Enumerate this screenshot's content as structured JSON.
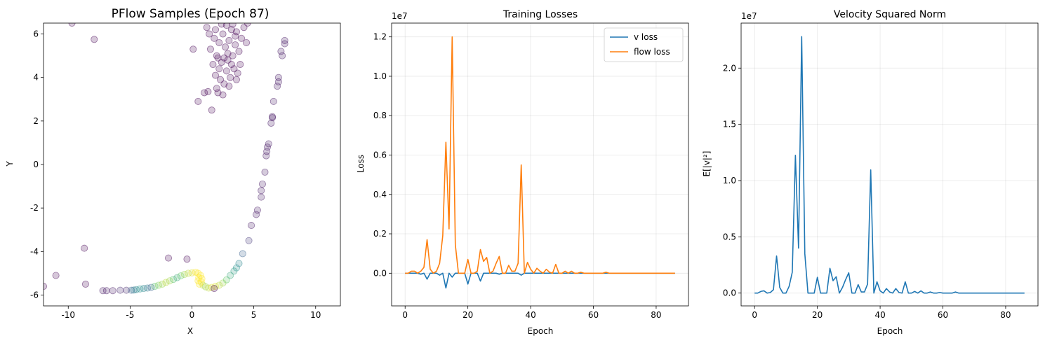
{
  "chart_data": [
    {
      "type": "scatter",
      "title": "PFlow Samples (Epoch 87)",
      "xlabel": "X",
      "ylabel": "Y",
      "xlim": [
        -12,
        12
      ],
      "ylim": [
        -6.5,
        6.5
      ],
      "xticks": [
        -10,
        -5,
        0,
        5,
        10
      ],
      "yticks": [
        -6,
        -4,
        -2,
        0,
        2,
        4,
        6
      ],
      "grid": false,
      "colormap": "viridis (point density)",
      "points": [
        [
          -12,
          -5.6,
          0
        ],
        [
          -11,
          -5.1,
          0
        ],
        [
          -9.7,
          6.5,
          0
        ],
        [
          -7.9,
          5.75,
          0
        ],
        [
          -8.7,
          -3.85,
          0
        ],
        [
          -8.6,
          -5.5,
          0
        ],
        [
          -7.2,
          -5.8,
          0.05
        ],
        [
          -6.9,
          -5.8,
          0.05
        ],
        [
          -6.4,
          -5.8,
          0.05
        ],
        [
          -5.8,
          -5.78,
          0.1
        ],
        [
          -5.3,
          -5.78,
          0.1
        ],
        [
          -4.9,
          -5.78,
          0.3
        ],
        [
          -4.7,
          -5.77,
          0.4
        ],
        [
          -4.5,
          -5.75,
          0.45
        ],
        [
          -4.2,
          -5.72,
          0.5
        ],
        [
          -3.9,
          -5.7,
          0.45
        ],
        [
          -3.6,
          -5.68,
          0.4
        ],
        [
          -3.3,
          -5.65,
          0.3
        ],
        [
          -3.0,
          -5.6,
          0.7
        ],
        [
          -2.7,
          -5.55,
          0.8
        ],
        [
          -2.4,
          -5.5,
          0.85
        ],
        [
          -2.1,
          -5.42,
          0.9
        ],
        [
          -1.8,
          -5.35,
          0.85
        ],
        [
          -1.5,
          -5.28,
          0.7
        ],
        [
          -1.2,
          -5.2,
          0.6
        ],
        [
          -0.9,
          -5.12,
          0.75
        ],
        [
          -0.6,
          -5.05,
          0.85
        ],
        [
          -0.3,
          -5.0,
          0.9
        ],
        [
          0,
          -4.98,
          0.95
        ],
        [
          0.3,
          -4.95,
          1
        ],
        [
          0.5,
          -5.0,
          1
        ],
        [
          0.7,
          -5.1,
          1
        ],
        [
          0.8,
          -5.25,
          1
        ],
        [
          0.75,
          -5.4,
          1
        ],
        [
          0.6,
          -5.5,
          1
        ],
        [
          0.5,
          -5.35,
          1
        ],
        [
          0.55,
          -5.2,
          1
        ],
        [
          0.9,
          -5.55,
          0.9
        ],
        [
          1.1,
          -5.62,
          0.85
        ],
        [
          1.35,
          -5.68,
          0.9
        ],
        [
          1.6,
          -5.65,
          0.95
        ],
        [
          1.9,
          -5.6,
          0.95
        ],
        [
          2.2,
          -5.55,
          0.9
        ],
        [
          2.5,
          -5.45,
          0.85
        ],
        [
          2.8,
          -5.3,
          0.75
        ],
        [
          3.1,
          -5.1,
          0.6
        ],
        [
          3.4,
          -4.9,
          0.55
        ],
        [
          3.6,
          -4.75,
          0.5
        ],
        [
          3.8,
          -4.55,
          0.45
        ],
        [
          4.1,
          -4.1,
          0.3
        ],
        [
          4.6,
          -3.5,
          0.15
        ],
        [
          4.8,
          -2.8,
          0.05
        ],
        [
          5.2,
          -2.3,
          0.05
        ],
        [
          5.3,
          -2.1,
          0.05
        ],
        [
          5.6,
          -1.5,
          0.05
        ],
        [
          5.6,
          -1.2,
          0.05
        ],
        [
          5.7,
          -0.9,
          0.05
        ],
        [
          5.9,
          -0.35,
          0.05
        ],
        [
          6.0,
          0.4,
          0.05
        ],
        [
          6.05,
          0.6,
          0.05
        ],
        [
          6.1,
          0.8,
          0.05
        ],
        [
          6.2,
          0.95,
          0.05
        ],
        [
          6.4,
          1.9,
          0.05
        ],
        [
          6.5,
          2.15,
          0.05
        ],
        [
          6.5,
          2.2,
          0.05
        ],
        [
          6.6,
          2.9,
          0.05
        ],
        [
          6.9,
          3.6,
          0.05
        ],
        [
          7.0,
          3.8,
          0.05
        ],
        [
          7.0,
          4.0,
          0.05
        ],
        [
          7.2,
          5.2,
          0.05
        ],
        [
          7.3,
          5.0,
          0.05
        ],
        [
          7.5,
          5.55,
          0.05
        ],
        [
          7.5,
          5.7,
          0.05
        ],
        [
          0.1,
          5.3,
          0
        ],
        [
          0.5,
          2.9,
          0
        ],
        [
          1.0,
          3.3,
          0
        ],
        [
          1.3,
          3.35,
          0
        ],
        [
          1.6,
          2.5,
          0
        ],
        [
          2.1,
          3.3,
          0
        ],
        [
          -1.9,
          -4.3,
          0
        ],
        [
          -0.4,
          -4.35,
          0
        ],
        [
          1.8,
          -5.7,
          0
        ],
        [
          1.2,
          6.3,
          0
        ],
        [
          1.4,
          6.0,
          0
        ],
        [
          1.8,
          5.8,
          0
        ],
        [
          1.5,
          5.3,
          0
        ],
        [
          2.0,
          5.0,
          0
        ],
        [
          1.7,
          4.6,
          0
        ],
        [
          2.2,
          4.4,
          0
        ],
        [
          1.9,
          4.1,
          0
        ],
        [
          2.3,
          3.9,
          0
        ],
        [
          2.6,
          3.7,
          0
        ],
        [
          2.0,
          3.5,
          0
        ],
        [
          2.4,
          4.7,
          0
        ],
        [
          2.8,
          4.3,
          0
        ],
        [
          3.1,
          4.0,
          0
        ],
        [
          2.9,
          4.8,
          0
        ],
        [
          3.3,
          5.0,
          0
        ],
        [
          2.7,
          5.4,
          0
        ],
        [
          3.0,
          5.7,
          0
        ],
        [
          3.5,
          5.5,
          0
        ],
        [
          2.5,
          6.0,
          0
        ],
        [
          3.2,
          6.2,
          0
        ],
        [
          2.8,
          6.4,
          0
        ],
        [
          3.6,
          6.1,
          0
        ],
        [
          4.0,
          5.8,
          0
        ],
        [
          3.8,
          5.2,
          0
        ],
        [
          4.2,
          6.3,
          0
        ],
        [
          4.5,
          6.5,
          0
        ],
        [
          3.9,
          4.6,
          0
        ],
        [
          3.4,
          4.4,
          0
        ],
        [
          3.7,
          4.2,
          0
        ],
        [
          2.6,
          4.9,
          0
        ],
        [
          2.2,
          5.6,
          0
        ],
        [
          1.9,
          6.2,
          0
        ],
        [
          3.3,
          6.45,
          0
        ],
        [
          2.4,
          6.45,
          0
        ],
        [
          4.4,
          5.6,
          0
        ],
        [
          3.0,
          3.6,
          0
        ],
        [
          2.5,
          3.2,
          0
        ],
        [
          3.6,
          3.9,
          0
        ],
        [
          2.1,
          4.9,
          0
        ],
        [
          3.5,
          5.9,
          0
        ],
        [
          2.9,
          5.1,
          0
        ],
        [
          3.2,
          4.6,
          0
        ]
      ]
    },
    {
      "type": "line",
      "title": "Training Losses",
      "xlabel": "Epoch",
      "ylabel": "Loss",
      "scale_label": "1e7",
      "xlim": [
        -4.3,
        90.3
      ],
      "ylim": [
        -0.166,
        1.27
      ],
      "xticks": [
        0,
        20,
        40,
        60,
        80
      ],
      "yticks": [
        "0.0",
        "0.2",
        "0.4",
        "0.6",
        "0.8",
        "1.0",
        "1.2"
      ],
      "ytick_values": [
        0,
        0.2,
        0.4,
        0.6,
        0.8,
        1.0,
        1.2
      ],
      "grid": true,
      "legend_position": "top-right",
      "series": [
        {
          "name": "v loss",
          "color": "#1f77b4",
          "x": [
            0,
            1,
            2,
            3,
            4,
            5,
            6,
            7,
            8,
            9,
            10,
            11,
            12,
            13,
            14,
            15,
            16,
            17,
            18,
            19,
            20,
            21,
            22,
            23,
            24,
            25,
            26,
            27,
            28,
            29,
            30,
            31,
            32,
            33,
            34,
            35,
            36,
            37,
            38,
            39,
            40,
            41,
            42,
            43,
            44,
            45,
            46,
            47,
            48,
            49,
            50,
            51,
            52,
            53,
            54,
            55,
            56,
            57,
            58,
            59,
            60,
            61,
            62,
            63,
            64,
            65,
            66,
            67,
            68,
            69,
            70,
            71,
            72,
            73,
            74,
            75,
            76,
            77,
            78,
            79,
            80,
            81,
            82,
            83,
            84,
            85,
            86
          ],
          "values": [
            0,
            0,
            0,
            0,
            0,
            -0.005,
            0,
            -0.03,
            0,
            0,
            0,
            -0.01,
            0,
            -0.075,
            0,
            -0.02,
            0,
            0,
            0,
            0,
            -0.055,
            0,
            0,
            0,
            -0.04,
            0,
            0,
            0,
            0,
            0,
            -0.005,
            0,
            0,
            0,
            0,
            0,
            0,
            -0.01,
            0,
            0,
            0,
            0,
            0,
            0,
            0,
            0,
            0,
            0,
            0,
            0,
            0,
            0,
            0,
            0,
            0,
            0,
            0,
            0,
            0,
            0,
            0,
            0,
            0,
            0,
            0,
            0,
            0,
            0,
            0,
            0,
            0,
            0,
            0,
            0,
            0,
            0,
            0,
            0,
            0,
            0,
            0,
            0,
            0,
            0,
            0,
            0,
            0
          ]
        },
        {
          "name": "flow loss",
          "color": "#ff7f0e",
          "x": [
            0,
            1,
            2,
            3,
            4,
            5,
            6,
            7,
            8,
            9,
            10,
            11,
            12,
            13,
            14,
            15,
            16,
            17,
            18,
            19,
            20,
            21,
            22,
            23,
            24,
            25,
            26,
            27,
            28,
            29,
            30,
            31,
            32,
            33,
            34,
            35,
            36,
            37,
            38,
            39,
            40,
            41,
            42,
            43,
            44,
            45,
            46,
            47,
            48,
            49,
            50,
            51,
            52,
            53,
            54,
            55,
            56,
            57,
            58,
            59,
            60,
            61,
            62,
            63,
            64,
            65,
            66,
            67,
            68,
            69,
            70,
            71,
            72,
            73,
            74,
            75,
            76,
            77,
            78,
            79,
            80,
            81,
            82,
            83,
            84,
            85,
            86
          ],
          "values": [
            0,
            0,
            0.01,
            0.01,
            0,
            0.01,
            0.03,
            0.17,
            0.02,
            0,
            0.01,
            0.05,
            0.19,
            0.665,
            0.225,
            1.2,
            0.145,
            0,
            0,
            0,
            0.07,
            0,
            0,
            0.01,
            0.12,
            0.06,
            0.08,
            0,
            0.01,
            0.05,
            0.085,
            0,
            0,
            0.04,
            0.01,
            0.01,
            0.05,
            0.55,
            0,
            0.055,
            0.02,
            0,
            0.025,
            0.01,
            0,
            0.02,
            0.005,
            0,
            0.045,
            0,
            0,
            0.01,
            0,
            0.01,
            0,
            0,
            0.005,
            0,
            0,
            0,
            0,
            0,
            0,
            0,
            0.005,
            0,
            0,
            0,
            0,
            0,
            0,
            0,
            0,
            0,
            0,
            0,
            0,
            0,
            0,
            0,
            0,
            0,
            0,
            0,
            0,
            0,
            0
          ]
        }
      ]
    },
    {
      "type": "line",
      "title": "Velocity Squared Norm",
      "xlabel": "Epoch",
      "ylabel": "E[|v|²]",
      "scale_label": "1e7",
      "xlim": [
        -4.3,
        90.3
      ],
      "ylim": [
        -0.114,
        2.4
      ],
      "xticks": [
        0,
        20,
        40,
        60,
        80
      ],
      "yticks": [
        "0.0",
        "0.5",
        "1.0",
        "1.5",
        "2.0"
      ],
      "ytick_values": [
        0,
        0.5,
        1.0,
        1.5,
        2.0
      ],
      "grid": true,
      "series": [
        {
          "name": "",
          "color": "#1f77b4",
          "x": [
            0,
            1,
            2,
            3,
            4,
            5,
            6,
            7,
            8,
            9,
            10,
            11,
            12,
            13,
            14,
            15,
            16,
            17,
            18,
            19,
            20,
            21,
            22,
            23,
            24,
            25,
            26,
            27,
            28,
            29,
            30,
            31,
            32,
            33,
            34,
            35,
            36,
            37,
            38,
            39,
            40,
            41,
            42,
            43,
            44,
            45,
            46,
            47,
            48,
            49,
            50,
            51,
            52,
            53,
            54,
            55,
            56,
            57,
            58,
            59,
            60,
            61,
            62,
            63,
            64,
            65,
            66,
            67,
            68,
            69,
            70,
            71,
            72,
            73,
            74,
            75,
            76,
            77,
            78,
            79,
            80,
            81,
            82,
            83,
            84,
            85,
            86
          ],
          "values": [
            0,
            0,
            0.015,
            0.02,
            0,
            0.005,
            0.03,
            0.33,
            0.05,
            0,
            0,
            0.06,
            0.185,
            1.225,
            0.4,
            2.28,
            0.35,
            0,
            0,
            0,
            0.14,
            0,
            0,
            0,
            0.22,
            0.11,
            0.145,
            0,
            0.05,
            0.12,
            0.18,
            0,
            0,
            0.075,
            0.01,
            0.01,
            0.08,
            1.095,
            0,
            0.1,
            0.02,
            0,
            0.04,
            0.01,
            0,
            0.04,
            0.005,
            0,
            0.1,
            0,
            0,
            0.015,
            0,
            0.02,
            0,
            0,
            0.01,
            0,
            0,
            0.005,
            0,
            0,
            0,
            0,
            0.01,
            0,
            0,
            0,
            0,
            0,
            0,
            0,
            0,
            0,
            0,
            0,
            0,
            0,
            0,
            0,
            0,
            0,
            0,
            0,
            0,
            0,
            0
          ]
        }
      ]
    }
  ]
}
